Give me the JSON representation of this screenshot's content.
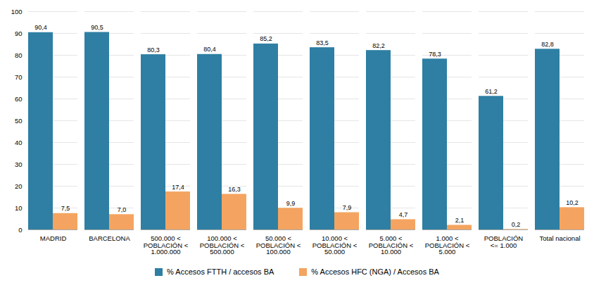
{
  "chart_data": {
    "type": "bar",
    "categories": [
      "MADRID",
      "BARCELONA",
      "500.000 <\nPOBLACIÓN <\n1.000.000",
      "100.000 <\nPOBLACIÓN <\n500.000",
      "50.000 <\nPOBLACIÓN <\n100.000",
      "10.000 <\nPOBLACIÓN <\n50.000",
      "5.000 <\nPOBLACIÓN <\n10.000",
      "1.000 <\nPOBLACIÓN <\n5.000",
      "POBLACIÓN\n<= 1.000",
      "Total nacional"
    ],
    "series": [
      {
        "name": "% Accesos FTTH / accesos BA",
        "color": "#2e7fa3",
        "values": [
          90.4,
          90.5,
          80.3,
          80.4,
          85.2,
          83.5,
          82.2,
          78.3,
          61.2,
          82.8
        ],
        "value_labels": [
          "90,4",
          "90,5",
          "80,3",
          "80,4",
          "85,2",
          "83,5",
          "82,2",
          "78,3",
          "61,2",
          "82,8"
        ]
      },
      {
        "name": "% Accesos HFC (NGA) / Accesos BA",
        "color": "#f4a460",
        "values": [
          7.5,
          7.0,
          17.4,
          16.3,
          9.9,
          7.9,
          4.7,
          2.1,
          0.2,
          10.2
        ],
        "value_labels": [
          "7,5",
          "7,0",
          "17,4",
          "16,3",
          "9,9",
          "7,9",
          "4,7",
          "2,1",
          "0,2",
          "10,2"
        ]
      }
    ],
    "ylim": [
      0,
      100
    ],
    "yticks": [
      0,
      10,
      20,
      30,
      40,
      50,
      60,
      70,
      80,
      90,
      100
    ],
    "grid": true,
    "legend": "bottom",
    "data_labels": true
  }
}
